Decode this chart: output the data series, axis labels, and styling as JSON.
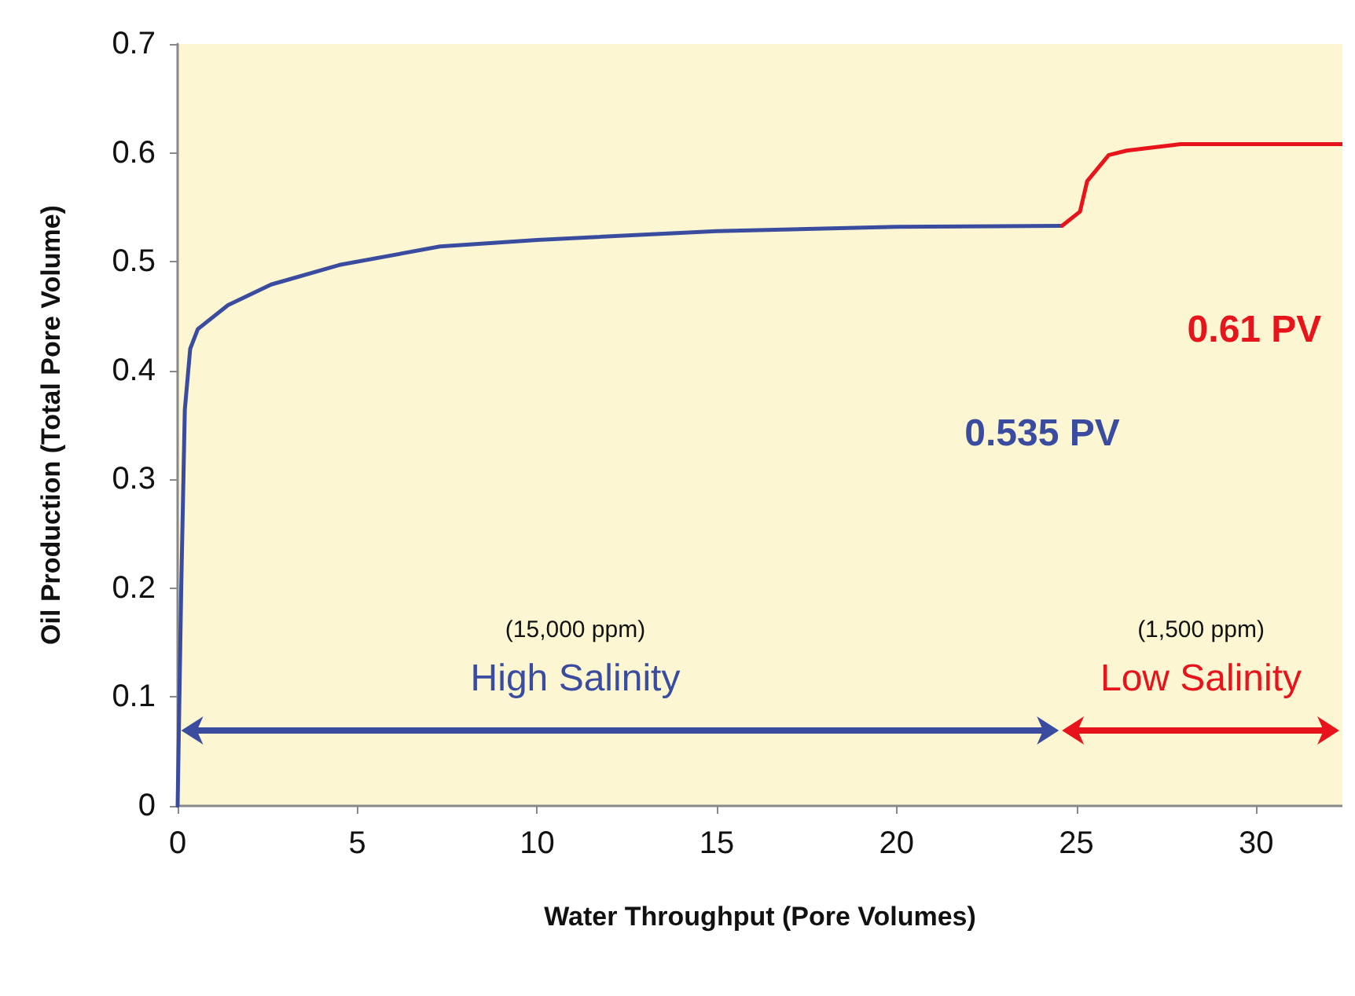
{
  "chart_data": {
    "type": "line",
    "xlabel": "Water Throughput (Pore Volumes)",
    "ylabel": "Oil Production (Total Pore Volume)",
    "series": [
      {
        "color": "#3a4ca0",
        "x": [
          0,
          0.1,
          0.2,
          0.35,
          0.56,
          1.4,
          2.6,
          4.5,
          7.3,
          10,
          15,
          20,
          24.6
        ],
        "values": [
          0,
          0.2,
          0.364,
          0.42,
          0.438,
          0.46,
          0.479,
          0.497,
          0.514,
          0.52,
          0.528,
          0.532,
          0.533
        ]
      },
      {
        "color": "#e8141c",
        "x": [
          24.6,
          25.1,
          25.3,
          25.9,
          26.4,
          27.9,
          32.4
        ],
        "values": [
          0.533,
          0.546,
          0.574,
          0.598,
          0.602,
          0.608,
          0.608
        ]
      }
    ],
    "xlim": [
      0,
      32.4
    ],
    "xticks": [
      0,
      5,
      10,
      15,
      20,
      25,
      30
    ],
    "ylim": [
      0,
      0.7
    ],
    "yticks": [
      0,
      0.1,
      0.2,
      0.3,
      0.4,
      0.5,
      0.6,
      0.7
    ],
    "grid": false,
    "marker": "none",
    "line_style": "solid",
    "annotations": [
      "0.535 PV",
      "0.61 PV",
      "(15,000 ppm)\nHigh Salinity",
      "(1,500 ppm)\nLow Salinity"
    ]
  }
}
